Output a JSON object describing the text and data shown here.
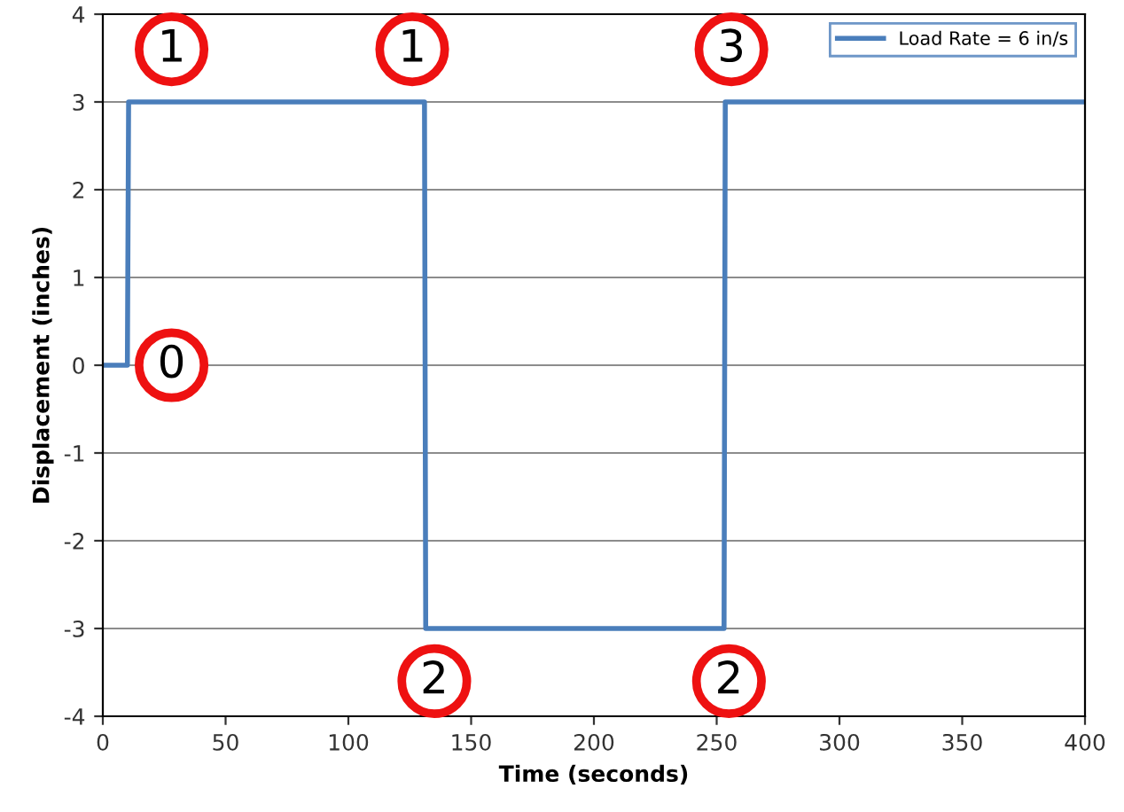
{
  "chart_data": {
    "type": "line",
    "xlabel": "Time (seconds)",
    "ylabel": "Displacement (inches)",
    "series": [
      {
        "name": "Load Rate = 6 in/s",
        "color": "#4a7ebb",
        "x": [
          0,
          10,
          10.5,
          131,
          131.5,
          253,
          253.5,
          400
        ],
        "values": [
          0,
          0,
          3,
          3,
          -3,
          -3,
          3,
          3
        ]
      }
    ],
    "xlim": [
      0,
      400
    ],
    "xticks": [
      0,
      50,
      100,
      150,
      200,
      250,
      300,
      350,
      400
    ],
    "ylim": [
      -4,
      4
    ],
    "yticks": [
      -4,
      -3,
      -2,
      -1,
      0,
      1,
      2,
      3,
      4
    ],
    "grid": "y",
    "legend": "top right",
    "marker": "none",
    "line_style": "solid",
    "annotations": [
      {
        "text": "0",
        "x": 28,
        "y": 0
      },
      {
        "text": "1",
        "x": 28,
        "y": 3.6
      },
      {
        "text": "1",
        "x": 126,
        "y": 3.6
      },
      {
        "text": "3",
        "x": 256,
        "y": 3.6
      },
      {
        "text": "2",
        "x": 135,
        "y": -3.6
      },
      {
        "text": "2",
        "x": 255,
        "y": -3.6
      }
    ]
  }
}
